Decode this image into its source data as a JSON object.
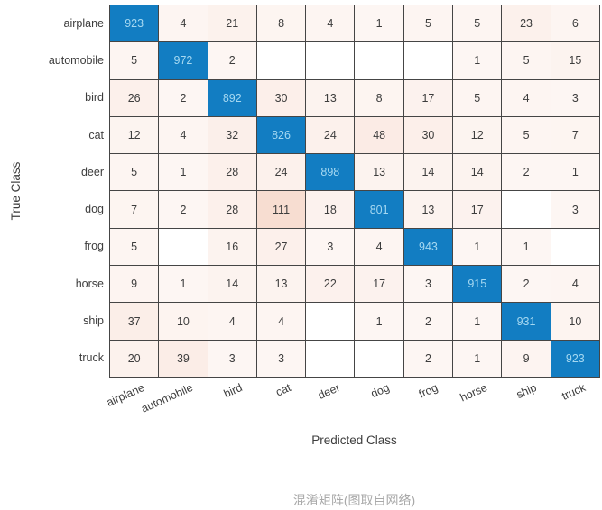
{
  "caption": "混淆矩阵(图取自网络)",
  "chart_data": {
    "type": "heatmap",
    "subtype": "confusion-matrix",
    "title": "",
    "xlabel": "Predicted Class",
    "ylabel": "True Class",
    "classes": [
      "airplane",
      "automobile",
      "bird",
      "cat",
      "deer",
      "dog",
      "frog",
      "horse",
      "ship",
      "truck"
    ],
    "matrix": [
      [
        923,
        4,
        21,
        8,
        4,
        1,
        5,
        5,
        23,
        6
      ],
      [
        5,
        972,
        2,
        0,
        0,
        0,
        0,
        1,
        5,
        15
      ],
      [
        26,
        2,
        892,
        30,
        13,
        8,
        17,
        5,
        4,
        3
      ],
      [
        12,
        4,
        32,
        826,
        24,
        48,
        30,
        12,
        5,
        7
      ],
      [
        5,
        1,
        28,
        24,
        898,
        13,
        14,
        14,
        2,
        1
      ],
      [
        7,
        2,
        28,
        111,
        18,
        801,
        13,
        17,
        0,
        3
      ],
      [
        5,
        0,
        16,
        27,
        3,
        4,
        943,
        1,
        1,
        0
      ],
      [
        9,
        1,
        14,
        13,
        22,
        17,
        3,
        915,
        2,
        4
      ],
      [
        37,
        10,
        4,
        4,
        0,
        1,
        2,
        1,
        931,
        10
      ],
      [
        20,
        39,
        3,
        3,
        0,
        0,
        2,
        1,
        9,
        923
      ]
    ],
    "zero_cells_blank": true,
    "max_off_diagonal": 111,
    "colors": {
      "diagonal_fill": "#127dc2",
      "diagonal_text": "#a5d8f1",
      "off_diagonal_base": "#d95319",
      "zero_fill": "#ffffff",
      "grid_line": "#454545",
      "label_text": "#3d3d3d",
      "caption_text": "#a9a9a9"
    },
    "layout": {
      "x_tick_rotation_deg": 24,
      "legend": "none",
      "colorbar": "none"
    }
  }
}
